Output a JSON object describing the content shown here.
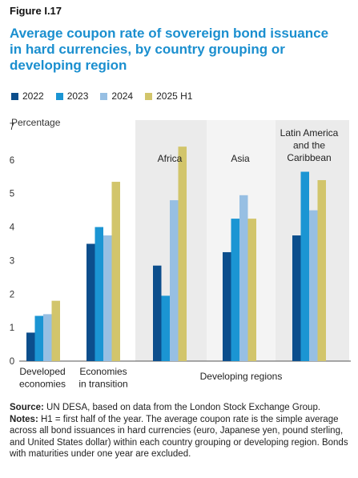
{
  "header": {
    "figure_label": "Figure I.17",
    "title_lines": [
      "Average coupon rate of sovereign bond issuance",
      "in hard currencies, by country grouping or",
      "developing region"
    ]
  },
  "colors": {
    "2022": "#0c4e8c",
    "2023": "#1b95d3",
    "2024": "#97bfe3",
    "2025 H1": "#d2c56b",
    "shade_dark": "#ebebeb",
    "shade_light": "#f4f4f4"
  },
  "chart_data": {
    "type": "bar",
    "y_unit_label": "Percentage",
    "ylim": [
      0,
      7
    ],
    "y_ticks": [
      "0",
      "1",
      "2",
      "3",
      "4",
      "5",
      "6",
      "7"
    ],
    "categories": [
      [
        "Developed",
        "economies"
      ],
      [
        "Economies",
        "in transition"
      ],
      [
        "Africa"
      ],
      [
        "Asia"
      ],
      [
        "Latin America",
        "and the",
        "Caribbean"
      ]
    ],
    "category_group_label": "Developing regions",
    "series": [
      {
        "name": "2022",
        "values": [
          0.85,
          3.5,
          2.85,
          3.25,
          3.75
        ]
      },
      {
        "name": "2023",
        "values": [
          1.35,
          4.0,
          1.95,
          4.25,
          5.65
        ]
      },
      {
        "name": "2024",
        "values": [
          1.4,
          3.75,
          4.8,
          4.95,
          4.5
        ]
      },
      {
        "name": "2025 H1",
        "values": [
          1.8,
          5.35,
          6.4,
          4.25,
          5.4
        ]
      }
    ]
  },
  "footer": {
    "source_label": "Source:",
    "source_text": " UN DESA, based on data from the London Stock Exchange Group.",
    "notes_label": "Notes:",
    "notes_text": " H1 = first half of the year. The average coupon rate is the simple average across all bond issuances in hard currencies (euro, Japanese yen, pound sterling, and United States dollar) within each country grouping or developing region. Bonds with maturities under one year are excluded."
  }
}
